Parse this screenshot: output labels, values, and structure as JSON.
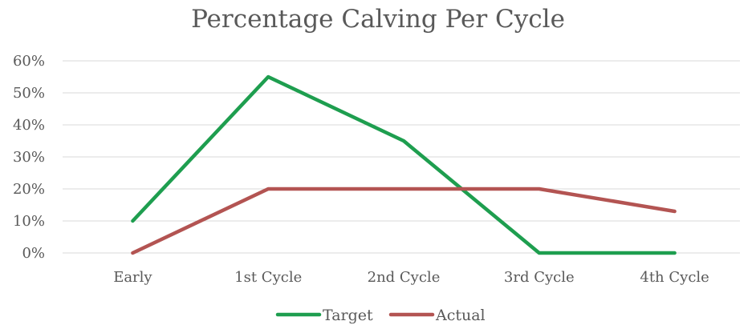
{
  "chart_data": {
    "type": "line",
    "title": "Percentage Calving Per Cycle",
    "xlabel": "",
    "ylabel": "",
    "categories": [
      "Early",
      "1st Cycle",
      "2nd Cycle",
      "3rd Cycle",
      "4th Cycle"
    ],
    "ylim": [
      0,
      60
    ],
    "yticks": [
      "0%",
      "10%",
      "20%",
      "30%",
      "40%",
      "50%",
      "60%"
    ],
    "grid": true,
    "legend_position": "bottom",
    "series": [
      {
        "name": "Target",
        "color": "#1e9e4f",
        "values": [
          10,
          55,
          35,
          0,
          0
        ]
      },
      {
        "name": "Actual",
        "color": "#b35452",
        "values": [
          0,
          20,
          20,
          20,
          13
        ]
      }
    ]
  }
}
